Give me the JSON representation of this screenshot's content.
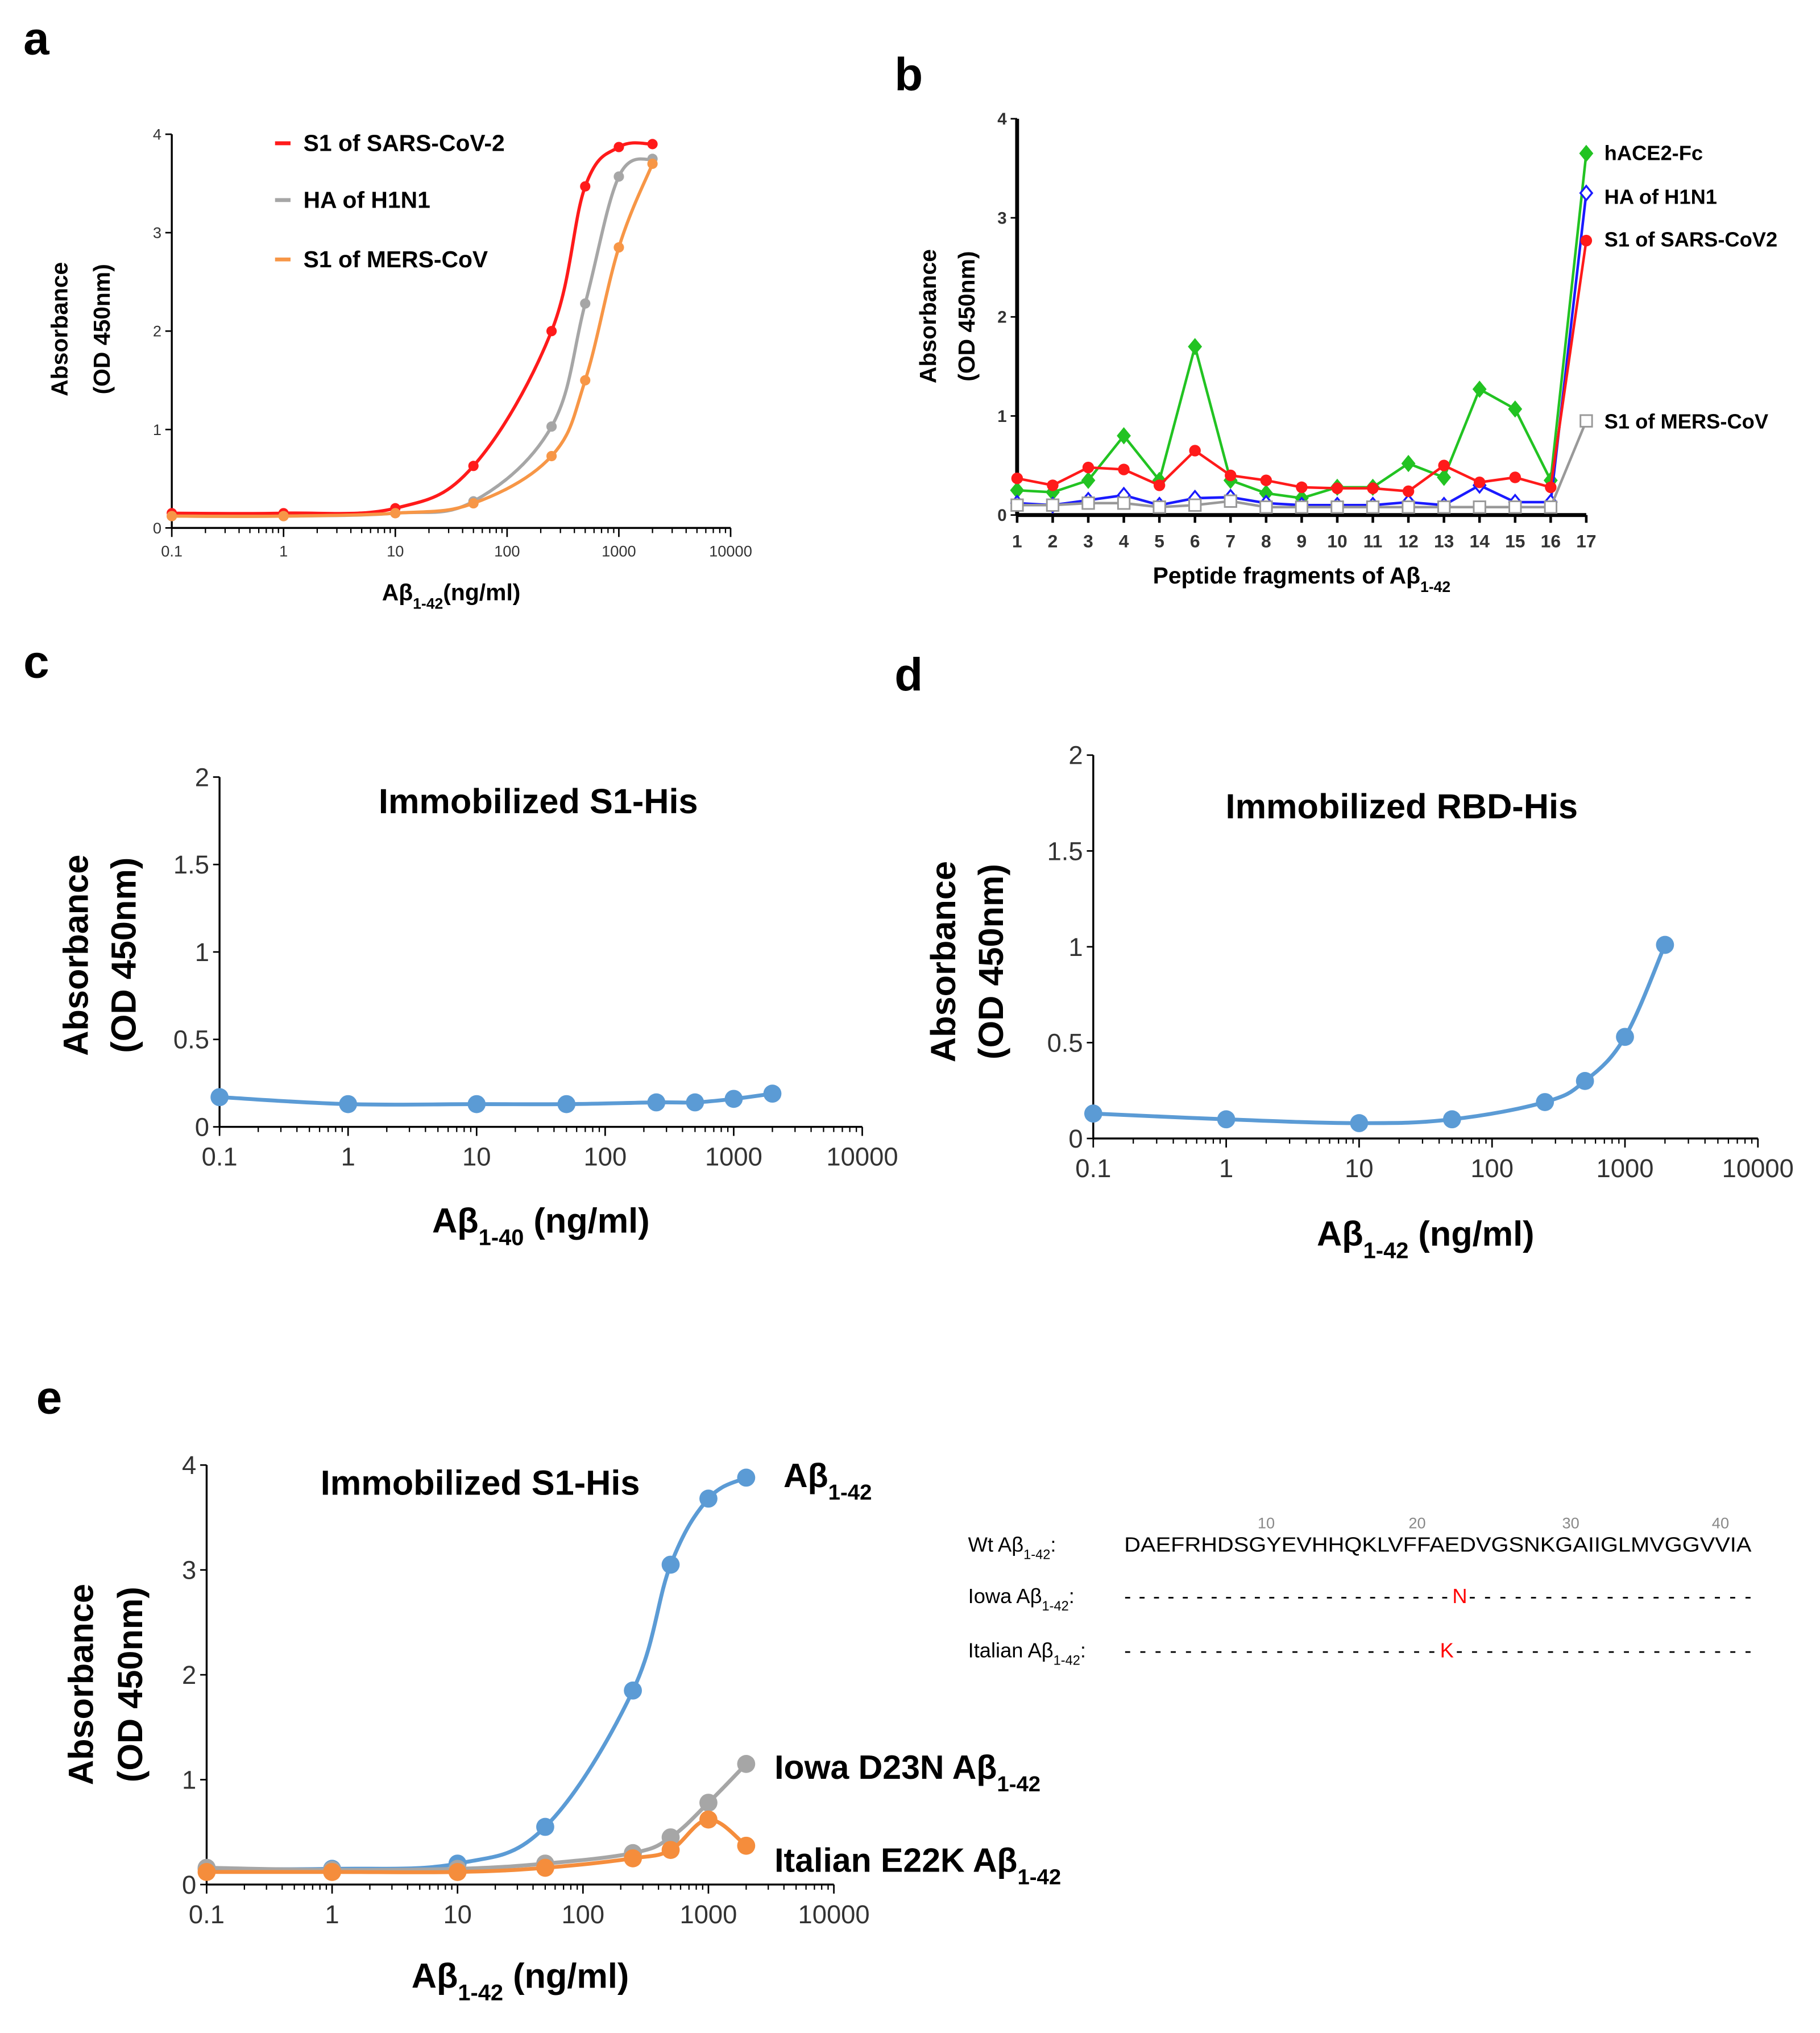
{
  "panels": [
    "a",
    "b",
    "c",
    "d",
    "e"
  ],
  "chart_data": [
    {
      "id": "a",
      "type": "line",
      "xscale": "log",
      "xlabel": [
        "Aβ",
        "1-42",
        "(ng/ml)"
      ],
      "ylabel": [
        "Absorbance",
        "(OD 450nm)"
      ],
      "xlim": [
        0.1,
        10000
      ],
      "ylim": [
        0,
        4
      ],
      "xticks": [
        "0.1",
        "1",
        "10",
        "100",
        "1000",
        "10000"
      ],
      "yticks": [
        "0",
        "1",
        "2",
        "3",
        "4"
      ],
      "x": [
        0.1,
        1,
        10,
        50,
        250,
        500,
        1000,
        2000
      ],
      "series": [
        {
          "name": "S1 of SARS-CoV-2",
          "color": "#ff1a1a",
          "values": [
            0.15,
            0.15,
            0.2,
            0.63,
            2.0,
            3.47,
            3.87,
            3.9
          ]
        },
        {
          "name": "HA of H1N1",
          "color": "#a6a6a6",
          "values": [
            0.12,
            0.12,
            0.15,
            0.27,
            1.03,
            2.28,
            3.57,
            3.75
          ]
        },
        {
          "name": "S1 of MERS-CoV",
          "color": "#f79646",
          "values": [
            0.12,
            0.12,
            0.15,
            0.25,
            0.73,
            1.5,
            2.85,
            3.7
          ]
        }
      ],
      "legend": "top-left"
    },
    {
      "id": "b",
      "type": "line",
      "xscale": "category",
      "xlabel": [
        "Peptide fragments of Aβ",
        "1-42",
        ""
      ],
      "ylabel": [
        "Absorbance",
        "(OD 450nm)"
      ],
      "ylim": [
        0,
        4
      ],
      "yticks": [
        "0",
        "1",
        "2",
        "3",
        "4"
      ],
      "categories": [
        "1",
        "2",
        "3",
        "4",
        "5",
        "6",
        "7",
        "8",
        "9",
        "10",
        "11",
        "12",
        "13",
        "14",
        "15",
        "16",
        "17"
      ],
      "series": [
        {
          "name": "hACE2-Fc",
          "color": "#22c322",
          "marker": "diamond-filled",
          "values": [
            0.25,
            0.23,
            0.35,
            0.8,
            0.35,
            1.7,
            0.35,
            0.22,
            0.17,
            0.28,
            0.28,
            0.52,
            0.38,
            1.27,
            1.07,
            0.35,
            3.65
          ]
        },
        {
          "name": "HA of H1N1",
          "color": "#1a1aff",
          "marker": "diamond-open",
          "values": [
            0.12,
            0.1,
            0.15,
            0.2,
            0.1,
            0.17,
            0.18,
            0.12,
            0.1,
            0.1,
            0.1,
            0.13,
            0.1,
            0.3,
            0.13,
            0.13,
            3.25
          ]
        },
        {
          "name": "S1 of SARS-CoV2",
          "color": "#ff1a1a",
          "marker": "circle",
          "values": [
            0.37,
            0.3,
            0.48,
            0.46,
            0.3,
            0.65,
            0.4,
            0.35,
            0.28,
            0.27,
            0.27,
            0.24,
            0.5,
            0.33,
            0.38,
            0.28,
            2.77
          ]
        },
        {
          "name": "S1 of MERS-CoV",
          "color": "#999999",
          "marker": "square-open",
          "values": [
            0.1,
            0.1,
            0.12,
            0.12,
            0.08,
            0.1,
            0.14,
            0.08,
            0.08,
            0.08,
            0.08,
            0.08,
            0.08,
            0.08,
            0.08,
            0.08,
            0.95
          ]
        }
      ],
      "legend": "right"
    },
    {
      "id": "c",
      "type": "line",
      "xscale": "log",
      "title": "Immobilized S1-His",
      "xlabel": [
        "Aβ",
        "1-40",
        " (ng/ml)"
      ],
      "ylabel": [
        "Absorbance",
        "(OD 450nm)"
      ],
      "xlim": [
        0.1,
        10000
      ],
      "ylim": [
        0,
        2
      ],
      "xticks": [
        "0.1",
        "1",
        "10",
        "100",
        "1000",
        "10000"
      ],
      "yticks": [
        "0",
        "0.5",
        "1",
        "1.5",
        "2"
      ],
      "x": [
        0.1,
        1,
        10,
        50,
        250,
        500,
        1000,
        2000
      ],
      "series": [
        {
          "name": "S1-His",
          "color": "#5b9bd5",
          "values": [
            0.17,
            0.13,
            0.13,
            0.13,
            0.14,
            0.14,
            0.16,
            0.19
          ]
        }
      ]
    },
    {
      "id": "d",
      "type": "line",
      "xscale": "log",
      "title": "Immobilized RBD-His",
      "xlabel": [
        "Aβ",
        "1-42",
        " (ng/ml)"
      ],
      "ylabel": [
        "Absorbance",
        "(OD 450nm)"
      ],
      "xlim": [
        0.1,
        10000
      ],
      "ylim": [
        0,
        2
      ],
      "xticks": [
        "0.1",
        "1",
        "10",
        "100",
        "1000",
        "10000"
      ],
      "yticks": [
        "0",
        "0.5",
        "1",
        "1.5",
        "2"
      ],
      "x": [
        0.1,
        1,
        10,
        50,
        250,
        500,
        1000,
        2000
      ],
      "series": [
        {
          "name": "RBD-His",
          "color": "#5b9bd5",
          "values": [
            0.13,
            0.1,
            0.08,
            0.1,
            0.19,
            0.3,
            0.53,
            1.01
          ]
        }
      ]
    },
    {
      "id": "e",
      "type": "line",
      "xscale": "log",
      "title": "Immobilized S1-His",
      "xlabel": [
        "Aβ",
        "1-42",
        " (ng/ml)"
      ],
      "ylabel": [
        "Absorbance",
        "(OD 450nm)"
      ],
      "xlim": [
        0.1,
        10000
      ],
      "ylim": [
        0,
        4
      ],
      "xticks": [
        "0.1",
        "1",
        "10",
        "100",
        "1000",
        "10000"
      ],
      "yticks": [
        "0",
        "1",
        "2",
        "3",
        "4"
      ],
      "x": [
        0.1,
        1,
        10,
        50,
        250,
        500,
        1000,
        2000
      ],
      "series": [
        {
          "name": [
            "Aβ",
            "1-42",
            ""
          ],
          "color": "#5b9bd5",
          "values": [
            0.15,
            0.15,
            0.2,
            0.55,
            1.85,
            3.05,
            3.68,
            3.88
          ]
        },
        {
          "name": [
            "Iowa D23N Aβ",
            "1-42",
            ""
          ],
          "color": "#a6a6a6",
          "values": [
            0.16,
            0.14,
            0.15,
            0.2,
            0.3,
            0.45,
            0.78,
            1.15
          ]
        },
        {
          "name": [
            "Italian E22K Aβ",
            "1-42",
            ""
          ],
          "color": "#f58d3c",
          "values": [
            0.12,
            0.12,
            0.12,
            0.16,
            0.25,
            0.33,
            0.62,
            0.37
          ]
        }
      ]
    }
  ],
  "sequence": {
    "positions": [
      "10",
      "20",
      "30",
      "40"
    ],
    "rows": [
      {
        "label": [
          "Wt Aβ",
          "1-42",
          ":"
        ],
        "seq_before": "DAEFRHDSGYEVHHQKLVFFAEDVGSNKGAIIGLMVGGVVIA",
        "mutation": "",
        "seq_after": ""
      },
      {
        "label": [
          "Iowa Aβ",
          "1-42",
          ":"
        ],
        "seq_before": "-----------------------",
        "mutation": "N",
        "seq_after": "-------------------"
      },
      {
        "label": [
          "Italian Aβ",
          "1-42",
          ":"
        ],
        "seq_before": "---------------------",
        "mutation": "K",
        "seq_after": "--------------------"
      }
    ],
    "mutation_color": "#ff0000"
  }
}
